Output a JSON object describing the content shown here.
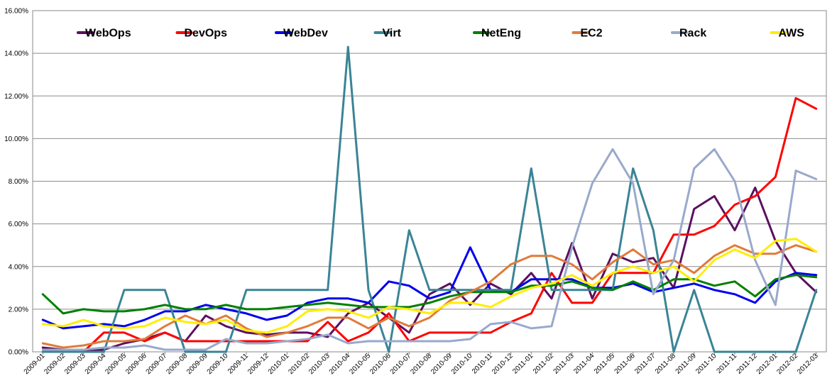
{
  "chart_data": {
    "type": "line",
    "title": "",
    "xlabel": "",
    "ylabel": "",
    "ylim": [
      0,
      0.16
    ],
    "y_tick_labels": [
      "0.00%",
      "2.00%",
      "4.00%",
      "6.00%",
      "8.00%",
      "10.00%",
      "12.00%",
      "14.00%",
      "16.00%"
    ],
    "grid": "horizontal",
    "legend": "top",
    "x": [
      "2009-01",
      "2009-02",
      "2009-03",
      "2009-04",
      "2009-05",
      "2009-06",
      "2009-07",
      "2009-08",
      "2009-09",
      "2009-10",
      "2009-11",
      "2009-12",
      "2010-01",
      "2010-02",
      "2010-03",
      "2010-04",
      "2010-05",
      "2010-06",
      "2010-07",
      "2010-08",
      "2010-09",
      "2010-10",
      "2010-11",
      "2010-12",
      "2011-01",
      "2011-02",
      "2011-03",
      "2011-04",
      "2011-05",
      "2011-06",
      "2011-07",
      "2011-08",
      "2011-09",
      "2011-10",
      "2011-11",
      "2011-12",
      "2012-01",
      "2012-02",
      "2012-03"
    ],
    "series": [
      {
        "name": "WebOps",
        "color": "#5c1060",
        "values": [
          0.002,
          0.001,
          0.001,
          0.001,
          0.004,
          0.006,
          0.009,
          0.005,
          0.017,
          0.012,
          0.009,
          0.008,
          0.009,
          0.009,
          0.007,
          0.018,
          0.023,
          0.016,
          0.009,
          0.027,
          0.032,
          0.022,
          0.032,
          0.027,
          0.037,
          0.025,
          0.051,
          0.025,
          0.046,
          0.042,
          0.044,
          0.03,
          0.067,
          0.073,
          0.057,
          0.077,
          0.052,
          0.037,
          0.028
        ]
      },
      {
        "name": "DevOps",
        "color": "#ff0000",
        "values": [
          0.0,
          0.0,
          0.0,
          0.009,
          0.009,
          0.005,
          0.009,
          0.005,
          0.005,
          0.005,
          0.005,
          0.005,
          0.005,
          0.005,
          0.014,
          0.005,
          0.009,
          0.018,
          0.005,
          0.009,
          0.009,
          0.009,
          0.009,
          0.014,
          0.018,
          0.037,
          0.023,
          0.023,
          0.037,
          0.037,
          0.037,
          0.055,
          0.055,
          0.059,
          0.069,
          0.073,
          0.082,
          0.119,
          0.114
        ]
      },
      {
        "name": "WebDev",
        "color": "#0000ee",
        "values": [
          0.015,
          0.011,
          0.012,
          0.013,
          0.012,
          0.015,
          0.019,
          0.019,
          0.022,
          0.02,
          0.018,
          0.015,
          0.017,
          0.023,
          0.025,
          0.025,
          0.023,
          0.033,
          0.031,
          0.025,
          0.028,
          0.049,
          0.029,
          0.028,
          0.034,
          0.034,
          0.034,
          0.03,
          0.03,
          0.032,
          0.028,
          0.03,
          0.032,
          0.029,
          0.027,
          0.023,
          0.033,
          0.037,
          0.036
        ]
      },
      {
        "name": "Virt",
        "color": "#3a8496",
        "values": [
          0.0,
          0.0,
          0.0,
          0.0,
          0.029,
          0.029,
          0.029,
          0.0,
          0.0,
          0.0,
          0.029,
          0.029,
          0.029,
          0.029,
          0.029,
          0.143,
          0.029,
          0.0,
          0.057,
          0.029,
          0.029,
          0.029,
          0.029,
          0.029,
          0.086,
          0.029,
          0.029,
          0.029,
          0.029,
          0.086,
          0.057,
          0.0,
          0.029,
          0.0,
          0.0,
          0.0,
          0.0,
          0.0,
          0.029
        ]
      },
      {
        "name": "NetEng",
        "color": "#008000",
        "values": [
          0.027,
          0.018,
          0.02,
          0.019,
          0.019,
          0.02,
          0.022,
          0.02,
          0.02,
          0.022,
          0.02,
          0.02,
          0.021,
          0.022,
          0.023,
          0.022,
          0.021,
          0.021,
          0.021,
          0.023,
          0.026,
          0.028,
          0.028,
          0.028,
          0.031,
          0.031,
          0.033,
          0.03,
          0.029,
          0.033,
          0.029,
          0.034,
          0.034,
          0.031,
          0.033,
          0.026,
          0.034,
          0.036,
          0.035
        ]
      },
      {
        "name": "EC2",
        "color": "#e07b39",
        "values": [
          0.004,
          0.002,
          0.003,
          0.005,
          0.005,
          0.006,
          0.012,
          0.017,
          0.013,
          0.017,
          0.011,
          0.007,
          0.009,
          0.012,
          0.016,
          0.016,
          0.011,
          0.016,
          0.012,
          0.016,
          0.024,
          0.028,
          0.033,
          0.041,
          0.045,
          0.045,
          0.041,
          0.034,
          0.042,
          0.048,
          0.041,
          0.043,
          0.037,
          0.045,
          0.05,
          0.046,
          0.046,
          0.05,
          0.047
        ]
      },
      {
        "name": "Rack",
        "color": "#99a9cc",
        "values": [
          0.001,
          0.001,
          0.001,
          0.002,
          0.002,
          0.003,
          0.001,
          0.001,
          0.001,
          0.006,
          0.004,
          0.004,
          0.005,
          0.006,
          0.008,
          0.004,
          0.005,
          0.005,
          0.005,
          0.005,
          0.005,
          0.006,
          0.013,
          0.014,
          0.011,
          0.012,
          0.049,
          0.079,
          0.095,
          0.079,
          0.027,
          0.043,
          0.086,
          0.095,
          0.08,
          0.043,
          0.022,
          0.085,
          0.081
        ]
      },
      {
        "name": "AWS",
        "color": "#ffee00",
        "values": [
          0.013,
          0.012,
          0.015,
          0.012,
          0.011,
          0.012,
          0.016,
          0.014,
          0.013,
          0.015,
          0.01,
          0.009,
          0.012,
          0.019,
          0.02,
          0.019,
          0.016,
          0.021,
          0.02,
          0.018,
          0.023,
          0.023,
          0.021,
          0.026,
          0.03,
          0.032,
          0.036,
          0.031,
          0.037,
          0.04,
          0.037,
          0.04,
          0.033,
          0.043,
          0.048,
          0.044,
          0.052,
          0.053,
          0.047
        ]
      }
    ]
  }
}
